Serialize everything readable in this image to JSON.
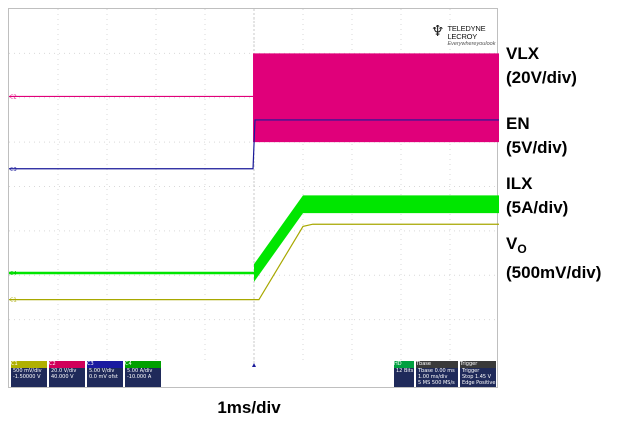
{
  "chart_data": {
    "type": "line",
    "instrument_logo": {
      "brand": "TELEDYNE LECROY",
      "tagline": "Everywhereyoulook"
    },
    "x_scale_label": "1ms/div",
    "x_unit": "ms",
    "xlim": [
      0,
      10
    ],
    "ylim": [
      0,
      8
    ],
    "grid": true,
    "trigger_x": 5,
    "series": [
      {
        "name": "VLX",
        "scale": "(20V/div)",
        "color": "#e0007a",
        "kind": "switching",
        "x": [
          0,
          4.98,
          4.98,
          10
        ],
        "y": [
          6.03,
          6.03,
          6.03,
          6.03
        ],
        "band": [
          5.0,
          7.0
        ]
      },
      {
        "name": "EN",
        "scale": "(5V/div)",
        "color": "#1a1a9a",
        "kind": "step",
        "x": [
          0,
          4.98,
          5.02,
          10
        ],
        "y": [
          4.4,
          4.4,
          5.5,
          5.5
        ]
      },
      {
        "name": "ILX",
        "scale": "(5A/div)",
        "color": "#00e600",
        "kind": "ramp_band",
        "x": [
          0,
          5.0,
          6.0,
          10
        ],
        "y": [
          2.05,
          2.05,
          3.6,
          3.6
        ],
        "band_halfwidth": 0.2
      },
      {
        "name": "V",
        "subscript": "O",
        "scale": "(500mV/div)",
        "color": "#a8a800",
        "kind": "ramp",
        "x": [
          0,
          5.1,
          6.0,
          6.2,
          10
        ],
        "y": [
          1.45,
          1.45,
          3.1,
          3.15,
          3.15
        ]
      }
    ],
    "channel_badges": [
      {
        "id": "C1",
        "color": "#b0b000",
        "lines": [
          "500 mV/div",
          "-1.50000 V"
        ]
      },
      {
        "id": "C2",
        "color": "#d0005a",
        "lines": [
          "20.0 V/div",
          "40.000 V"
        ]
      },
      {
        "id": "C3",
        "color": "#1a1aa0",
        "lines": [
          "5.00 V/div",
          "0.0 mV ofst"
        ]
      },
      {
        "id": "C4",
        "color": "#00a000",
        "lines": [
          "5.00 A/div",
          "-10.000 A"
        ]
      }
    ],
    "status_badges": [
      {
        "id": "HD",
        "color": "#00a040",
        "lines": [
          "12 Bits"
        ]
      },
      {
        "id": "Tbase",
        "color": "#3a3a3a",
        "lines": [
          "Tbase  0.00 ms",
          "1.00 ms/div",
          "5 MS  500 MS/s"
        ]
      },
      {
        "id": "Trigger",
        "color": "#3a3a3a",
        "lines": [
          "Trigger",
          "Stop  1.45 V",
          "Edge  Positive"
        ]
      }
    ]
  }
}
